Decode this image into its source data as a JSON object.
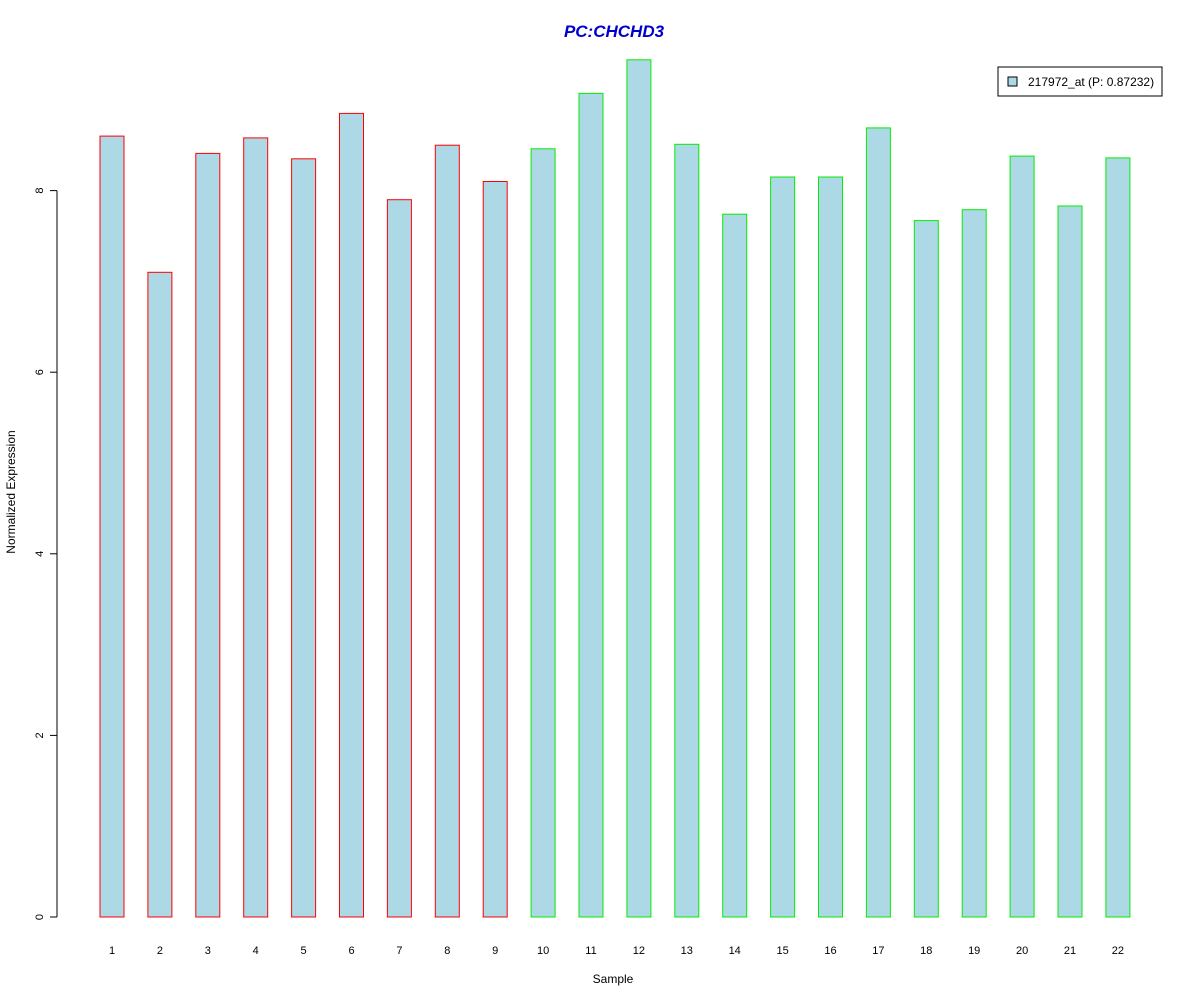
{
  "chart_data": {
    "type": "bar",
    "title": "PC:CHCHD3",
    "xlabel": "Sample",
    "ylabel": "Normalized Expression",
    "ylim": [
      0,
      9.5
    ],
    "yticks": [
      0,
      2,
      4,
      6,
      8
    ],
    "categories": [
      "1",
      "2",
      "3",
      "4",
      "5",
      "6",
      "7",
      "8",
      "9",
      "10",
      "11",
      "12",
      "13",
      "14",
      "15",
      "16",
      "17",
      "18",
      "19",
      "20",
      "21",
      "22"
    ],
    "series": [
      {
        "name": "217972_at (P: 0.87232)",
        "values": [
          8.6,
          7.1,
          8.41,
          8.58,
          8.35,
          8.85,
          7.9,
          8.5,
          8.1,
          8.46,
          9.07,
          9.44,
          8.51,
          7.74,
          8.15,
          8.15,
          8.69,
          7.67,
          7.79,
          8.38,
          7.83,
          8.36
        ]
      }
    ],
    "groups": [
      {
        "samples": [
          1,
          9
        ],
        "border_color": "#ff0000"
      },
      {
        "samples": [
          10,
          22
        ],
        "border_color": "#00ee00"
      }
    ],
    "bar_fill": "#add8e6",
    "title_color": "#0000cc",
    "legend_position": "top-right",
    "grid": false
  }
}
